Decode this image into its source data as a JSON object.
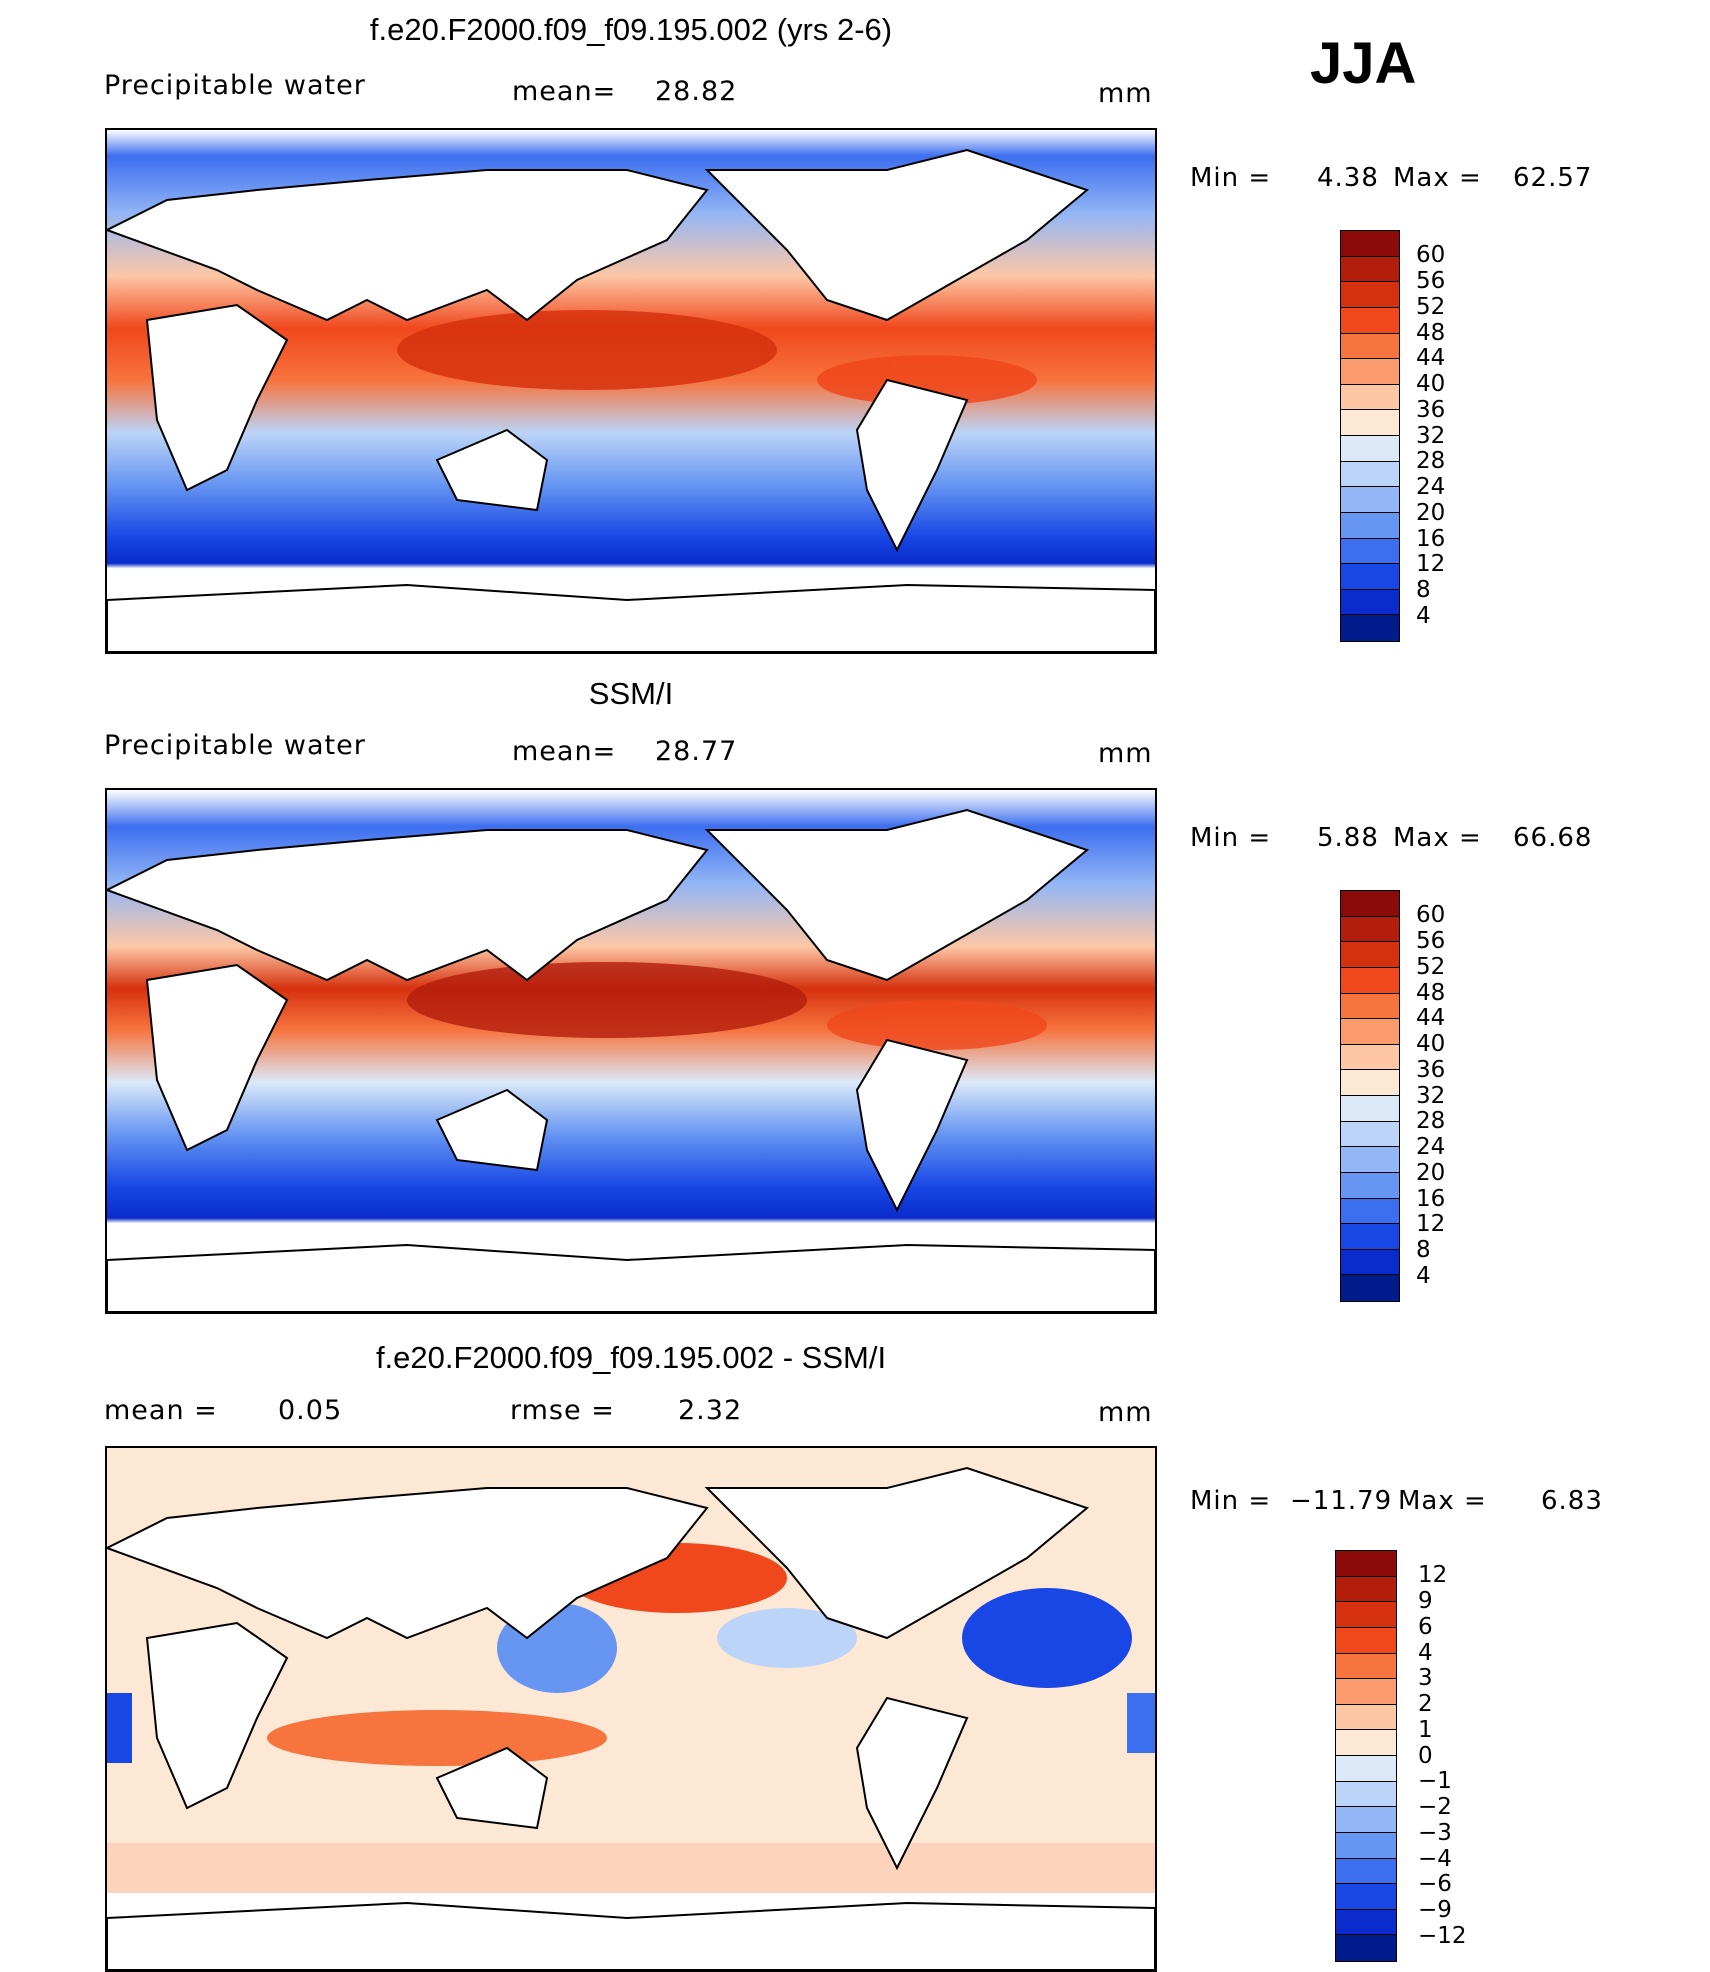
{
  "season": "JJA",
  "panels": [
    {
      "id": "model",
      "title": "f.e20.F2000.f09_f09.195.002 (yrs 2-6)",
      "left_label": "Precipitable water",
      "stat_label": "mean=",
      "stat_value": "28.82",
      "second_stat_label": "",
      "second_stat_value": "",
      "units": "mm",
      "min_label": "Min =",
      "min_value": "4.38",
      "max_label": "Max =",
      "max_value": "62.57",
      "colorbar": {
        "labels": [
          "60",
          "56",
          "52",
          "48",
          "44",
          "40",
          "36",
          "32",
          "28",
          "24",
          "20",
          "16",
          "12",
          "8",
          "4"
        ],
        "colors": [
          "#8b0a0a",
          "#b31d0c",
          "#d6310e",
          "#f0471c",
          "#f7743f",
          "#fb9a6c",
          "#fdc7a6",
          "#fde8d6",
          "#dbe9f8",
          "#bcd4f7",
          "#93b6f5",
          "#6695f2",
          "#3c6ef0",
          "#1847e6",
          "#0a2ccc",
          "#001c8c"
        ]
      }
    },
    {
      "id": "obs",
      "title": "SSM/I",
      "left_label": "Precipitable water",
      "stat_label": "mean=",
      "stat_value": "28.77",
      "second_stat_label": "",
      "second_stat_value": "",
      "units": "mm",
      "min_label": "Min =",
      "min_value": "5.88",
      "max_label": "Max =",
      "max_value": "66.68",
      "colorbar": {
        "labels": [
          "60",
          "56",
          "52",
          "48",
          "44",
          "40",
          "36",
          "32",
          "28",
          "24",
          "20",
          "16",
          "12",
          "8",
          "4"
        ],
        "colors": [
          "#8b0a0a",
          "#b31d0c",
          "#d6310e",
          "#f0471c",
          "#f7743f",
          "#fb9a6c",
          "#fdc7a6",
          "#fde8d6",
          "#dbe9f8",
          "#bcd4f7",
          "#93b6f5",
          "#6695f2",
          "#3c6ef0",
          "#1847e6",
          "#0a2ccc",
          "#001c8c"
        ]
      }
    },
    {
      "id": "diff",
      "title": "f.e20.F2000.f09_f09.195.002 - SSM/I",
      "left_label": "mean =",
      "left_value": "0.05",
      "stat_label": "rmse =",
      "stat_value": "2.32",
      "units": "mm",
      "min_label": "Min =",
      "min_value": "−11.79",
      "max_label": "Max =",
      "max_value": "6.83",
      "colorbar": {
        "labels": [
          "12",
          "9",
          "6",
          "4",
          "3",
          "2",
          "1",
          "0",
          "−1",
          "−2",
          "−3",
          "−4",
          "−6",
          "−9",
          "−12"
        ],
        "colors": [
          "#8b0a0a",
          "#b31d0c",
          "#d6310e",
          "#f0471c",
          "#f7743f",
          "#fb9a6c",
          "#fdc7a6",
          "#fde8d6",
          "#dbe9f8",
          "#bcd4f7",
          "#93b6f5",
          "#6695f2",
          "#3c6ef0",
          "#1847e6",
          "#0a2ccc",
          "#001c8c"
        ]
      }
    }
  ]
}
